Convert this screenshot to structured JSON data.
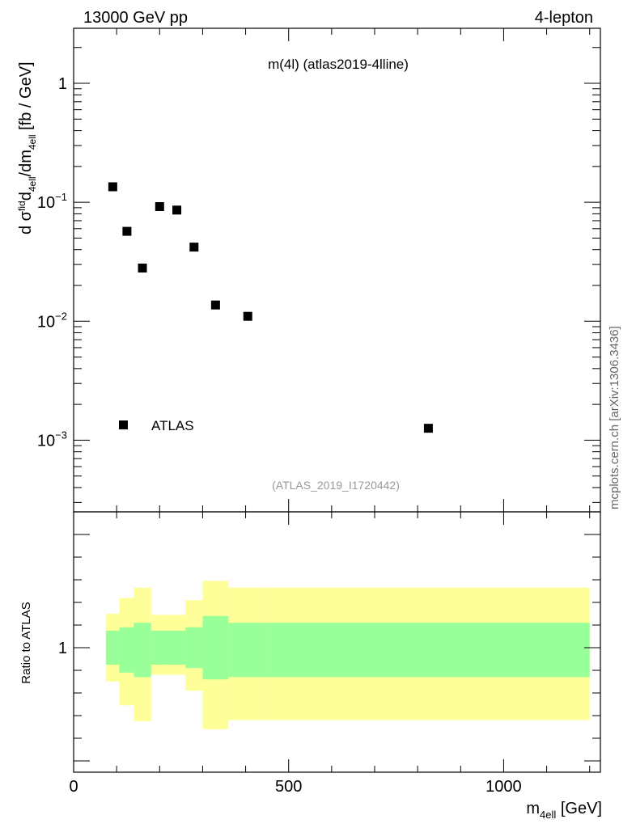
{
  "header": {
    "left": "13000 GeV pp",
    "right": "4-lepton"
  },
  "side_label": "mcplots.cern.ch [arXiv:1306.3436]",
  "chart_data": [
    {
      "type": "scatter",
      "title": "m(4l) (atlas2019-4lline)",
      "watermark": "(ATLAS_2019_I1720442)",
      "ylabel": {
        "main": "d σ",
        "sup": "fid",
        "mid1": "d",
        "sub1": "4ell",
        "mid2": "/dm",
        "sub2": "4ell",
        "unit": " [fb / GeV]"
      },
      "yscale": "log",
      "ylim": [
        0.00025,
        2.9
      ],
      "xlim": [
        0,
        1225
      ],
      "yticks": [
        {
          "value": 1,
          "base": "1",
          "exp": ""
        },
        {
          "value": 0.1,
          "base": "10",
          "exp": "−1"
        },
        {
          "value": 0.01,
          "base": "10",
          "exp": "−2"
        },
        {
          "value": 0.001,
          "base": "10",
          "exp": "−3"
        }
      ],
      "legend": {
        "label": "ATLAS",
        "placement": "bottom-left"
      },
      "series": [
        {
          "name": "ATLAS",
          "color": "#000000",
          "points": [
            {
              "x": 91,
              "y": 0.135
            },
            {
              "x": 124,
              "y": 0.057
            },
            {
              "x": 160,
              "y": 0.028
            },
            {
              "x": 200,
              "y": 0.092
            },
            {
              "x": 240,
              "y": 0.086
            },
            {
              "x": 280,
              "y": 0.042
            },
            {
              "x": 330,
              "y": 0.0137
            },
            {
              "x": 405,
              "y": 0.011
            },
            {
              "x": 825,
              "y": 0.00126
            }
          ]
        }
      ]
    },
    {
      "type": "area",
      "ylabel": "Ratio to ATLAS",
      "xlabel": {
        "main": "m",
        "sub": "4ell",
        "unit": " [GeV]"
      },
      "xlim": [
        0,
        1225
      ],
      "ylim": [
        0.45,
        1.6
      ],
      "xticks": [
        {
          "value": 0,
          "label": "0"
        },
        {
          "value": 500,
          "label": "500"
        },
        {
          "value": 1000,
          "label": "1000"
        }
      ],
      "yticks": [
        {
          "value": 1,
          "label": "1"
        }
      ],
      "bands": {
        "yellow_color": "#ffff99",
        "green_color": "#99ff99",
        "bins": [
          {
            "x0": 75,
            "x1": 106,
            "y_lo": 0.85,
            "y_hi": 1.15,
            "g_lo": 0.925,
            "g_hi": 1.075
          },
          {
            "x0": 106,
            "x1": 140,
            "y_lo": 0.745,
            "y_hi": 1.22,
            "g_lo": 0.89,
            "g_hi": 1.09
          },
          {
            "x0": 140,
            "x1": 180,
            "y_lo": 0.675,
            "y_hi": 1.265,
            "g_lo": 0.87,
            "g_hi": 1.11
          },
          {
            "x0": 180,
            "x1": 220,
            "y_lo": 0.88,
            "y_hi": 1.145,
            "g_lo": 0.925,
            "g_hi": 1.075
          },
          {
            "x0": 220,
            "x1": 260,
            "y_lo": 0.88,
            "y_hi": 1.145,
            "g_lo": 0.925,
            "g_hi": 1.075
          },
          {
            "x0": 260,
            "x1": 300,
            "y_lo": 0.81,
            "y_hi": 1.21,
            "g_lo": 0.91,
            "g_hi": 1.09
          },
          {
            "x0": 300,
            "x1": 360,
            "y_lo": 0.64,
            "y_hi": 1.295,
            "g_lo": 0.86,
            "g_hi": 1.14
          },
          {
            "x0": 360,
            "x1": 450,
            "y_lo": 0.68,
            "y_hi": 1.265,
            "g_lo": 0.87,
            "g_hi": 1.11
          },
          {
            "x0": 450,
            "x1": 1200,
            "y_lo": 0.68,
            "y_hi": 1.265,
            "g_lo": 0.87,
            "g_hi": 1.11
          }
        ]
      }
    }
  ]
}
